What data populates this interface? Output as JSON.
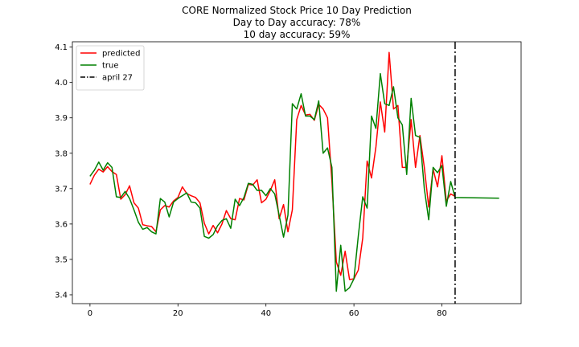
{
  "chart_data": {
    "type": "line",
    "title_lines": [
      "CORE Normalized Stock Price 10 Day Prediction",
      "Day to Day accuracy: 78%",
      "10 day accuracy: 59%"
    ],
    "xlabel": "",
    "ylabel": "",
    "xlim": [
      -4,
      98
    ],
    "ylim": [
      3.375,
      4.115
    ],
    "x_ticks": [
      0,
      20,
      40,
      60,
      80
    ],
    "y_ticks": [
      3.4,
      3.5,
      3.6,
      3.7,
      3.8,
      3.9,
      4.0,
      4.1
    ],
    "x_tick_labels": [
      "0",
      "20",
      "40",
      "60",
      "80"
    ],
    "y_tick_labels": [
      "3.4",
      "3.5",
      "3.6",
      "3.7",
      "3.8",
      "3.9",
      "4.0",
      "4.1"
    ],
    "grid": false,
    "legend_position": "top-left",
    "series": [
      {
        "name": "predicted",
        "color": "#ff0000",
        "x": [
          0,
          1,
          2,
          3,
          4,
          5,
          6,
          7,
          8,
          9,
          10,
          11,
          12,
          13,
          14,
          15,
          16,
          17,
          18,
          19,
          20,
          21,
          22,
          23,
          24,
          25,
          26,
          27,
          28,
          29,
          30,
          31,
          32,
          33,
          34,
          35,
          36,
          37,
          38,
          39,
          40,
          41,
          42,
          43,
          44,
          45,
          46,
          47,
          48,
          49,
          50,
          51,
          52,
          53,
          54,
          55,
          56,
          57,
          58,
          59,
          60,
          61,
          62,
          63,
          64,
          65,
          66,
          67,
          68,
          69,
          70,
          71,
          72,
          73,
          74,
          75,
          76,
          77,
          78,
          79,
          80,
          81,
          82,
          83
        ],
        "values": [
          3.712,
          3.738,
          3.755,
          3.747,
          3.762,
          3.748,
          3.74,
          3.67,
          3.683,
          3.708,
          3.66,
          3.645,
          3.598,
          3.595,
          3.593,
          3.578,
          3.64,
          3.652,
          3.648,
          3.665,
          3.675,
          3.705,
          3.686,
          3.68,
          3.675,
          3.66,
          3.602,
          3.572,
          3.596,
          3.575,
          3.6,
          3.638,
          3.615,
          3.612,
          3.672,
          3.668,
          3.712,
          3.71,
          3.725,
          3.66,
          3.67,
          3.695,
          3.725,
          3.615,
          3.655,
          3.578,
          3.64,
          3.895,
          3.935,
          3.908,
          3.91,
          3.893,
          3.938,
          3.925,
          3.9,
          3.72,
          3.493,
          3.455,
          3.523,
          3.443,
          3.445,
          3.47,
          3.56,
          3.778,
          3.73,
          3.818,
          3.945,
          3.86,
          4.085,
          3.925,
          3.935,
          3.76,
          3.76,
          3.895,
          3.76,
          3.85,
          3.76,
          3.648,
          3.755,
          3.705,
          3.793,
          3.665,
          3.685,
          3.678
        ]
      },
      {
        "name": "true",
        "color": "#008000",
        "x": [
          0,
          1,
          2,
          3,
          4,
          5,
          6,
          7,
          8,
          9,
          10,
          11,
          12,
          13,
          14,
          15,
          16,
          17,
          18,
          19,
          20,
          21,
          22,
          23,
          24,
          25,
          26,
          27,
          28,
          29,
          30,
          31,
          32,
          33,
          34,
          35,
          36,
          37,
          38,
          39,
          40,
          41,
          42,
          43,
          44,
          45,
          46,
          47,
          48,
          49,
          50,
          51,
          52,
          53,
          54,
          55,
          56,
          57,
          58,
          59,
          60,
          61,
          62,
          63,
          64,
          65,
          66,
          67,
          68,
          69,
          70,
          71,
          72,
          73,
          74,
          75,
          76,
          77,
          78,
          79,
          80,
          81,
          82,
          83,
          93
        ],
        "values": [
          3.735,
          3.752,
          3.775,
          3.752,
          3.773,
          3.76,
          3.677,
          3.675,
          3.692,
          3.672,
          3.64,
          3.605,
          3.585,
          3.59,
          3.578,
          3.572,
          3.672,
          3.662,
          3.62,
          3.662,
          3.672,
          3.68,
          3.688,
          3.662,
          3.66,
          3.645,
          3.565,
          3.56,
          3.57,
          3.595,
          3.61,
          3.615,
          3.588,
          3.67,
          3.652,
          3.675,
          3.715,
          3.712,
          3.695,
          3.695,
          3.68,
          3.7,
          3.685,
          3.625,
          3.563,
          3.625,
          3.94,
          3.925,
          3.968,
          3.905,
          3.905,
          3.895,
          3.948,
          3.8,
          3.815,
          3.76,
          3.41,
          3.54,
          3.41,
          3.42,
          3.445,
          3.567,
          3.677,
          3.645,
          3.905,
          3.87,
          4.025,
          3.94,
          3.935,
          3.988,
          3.9,
          3.88,
          3.74,
          3.955,
          3.85,
          3.845,
          3.7,
          3.612,
          3.76,
          3.745,
          3.765,
          3.65,
          3.72,
          3.675,
          3.673
        ]
      }
    ],
    "vlines": [
      {
        "name": "april 27",
        "x": 83,
        "color": "#000000",
        "style": "dash-dot"
      }
    ]
  }
}
